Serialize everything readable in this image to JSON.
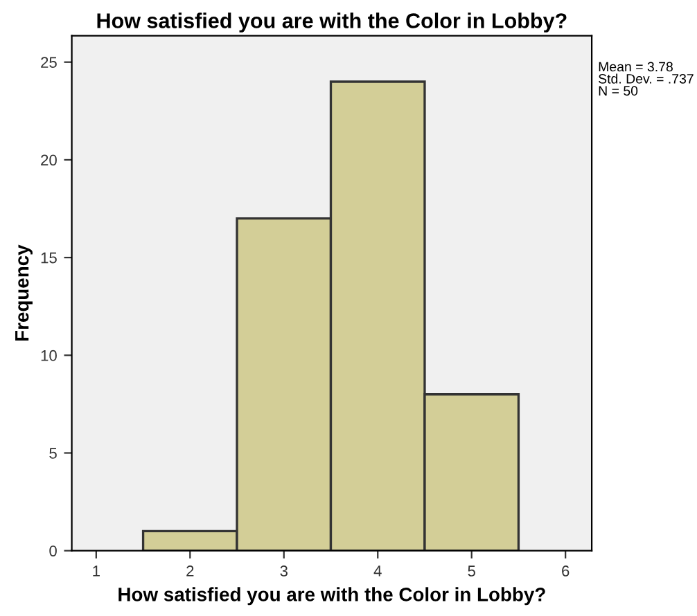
{
  "chart_data": {
    "type": "histogram",
    "title": "How satisfied you are with the Color in Lobby?",
    "xlabel": "How satisfied you are with the Color in Lobby?",
    "ylabel": "Frequency",
    "bins": [
      1.5,
      2.5,
      3.5,
      4.5,
      5.5
    ],
    "values": [
      1,
      17,
      24,
      8
    ],
    "color": "#d3ce97",
    "xlim": [
      0.74,
      6.28
    ],
    "xticks": [
      1,
      2,
      3,
      4,
      5,
      6
    ],
    "ylim": [
      0,
      26.35
    ],
    "yticks": [
      0,
      5,
      10,
      15,
      20,
      25
    ],
    "grid": false,
    "legend": false,
    "annotations": [
      "Mean = 3.78\nStd. Dev. = .737\nN = 50"
    ]
  }
}
